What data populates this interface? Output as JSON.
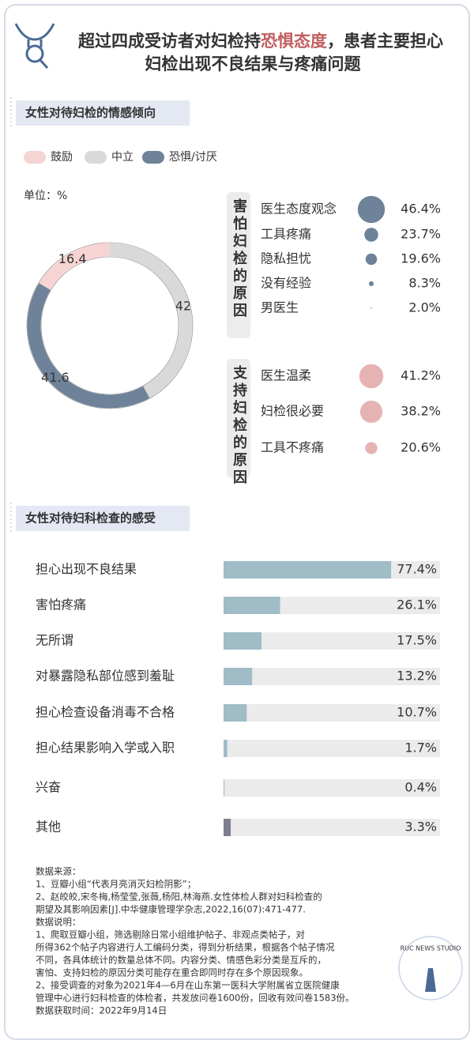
{
  "header": {
    "title": [
      "超过四成受访者对妇检持",
      "恐惧态度",
      "，患者主要担心",
      "妇检出现不良结果与疼痛问题"
    ]
  },
  "chart_data": [
    {
      "type": "pie",
      "title": "女性对待妇检的情感倾向",
      "unit": "单位：%",
      "categories": [
        "鼓励",
        "中立",
        "恐惧/讨厌"
      ],
      "values": [
        16.4,
        42,
        41.6
      ],
      "colors": [
        "#f7d4d4",
        "#d9d9d9",
        "#6e8299"
      ]
    },
    {
      "type": "bubble",
      "title": "害怕妇检的原因",
      "categories": [
        "医生态度观念",
        "工具疼痛",
        "隐私担忧",
        "没有经验",
        "男医生"
      ],
      "values": [
        46.4,
        23.7,
        19.6,
        8.3,
        2.0
      ],
      "value_labels": [
        "46.4%",
        "23.7%",
        "19.6%",
        "8.3%",
        "2.0%"
      ],
      "color": "#6e8299"
    },
    {
      "type": "bubble",
      "title": "支持妇检的原因",
      "categories": [
        "医生温柔",
        "妇检很必要",
        "工具不疼痛"
      ],
      "values": [
        41.2,
        38.2,
        20.6
      ],
      "value_labels": [
        "41.2%",
        "38.2%",
        "20.6%"
      ],
      "color": "#e6b3b3"
    },
    {
      "type": "bar",
      "orientation": "horizontal",
      "title": "女性对待妇科检查的感受",
      "categories": [
        "担心出现不良结果",
        "害怕疼痛",
        "无所谓",
        "对暴露隐私部位感到羞耻",
        "担心检查设备消毒不合格",
        "担心结果影响入学或入职",
        "兴奋",
        "其他"
      ],
      "values": [
        77.4,
        26.1,
        17.5,
        13.2,
        10.7,
        1.7,
        0.4,
        3.3
      ],
      "value_labels": [
        "77.4%",
        "26.1%",
        "17.5%",
        "13.2%",
        "10.7%",
        "1.7%",
        "0.4%",
        "3.3%"
      ],
      "colors": [
        "#9fbcc7",
        "#9fbcc7",
        "#9fbcc7",
        "#9fbcc7",
        "#9fbcc7",
        "#9fbcc7",
        "#9fbcc7",
        "#7d7f8c"
      ],
      "track_color": "#ebebeb",
      "xlim": [
        0,
        100
      ]
    }
  ],
  "footer": {
    "lines": [
      "数据来源：",
      "1、豆瓣小组“代表月亮消灭妇检阴影”；",
      "2、赵皎皎,宋冬梅,杨莹莹,张薇,杨阳,林海燕.女性体检人群对妇科检查的",
      "期望及其影响因素[J].中华健康管理学杂志,2022,16(07):471-477.",
      "数据说明：",
      "1、爬取豆瓣小组，筛选剔除日常小组维护帖子、非观点类帖子，对",
      "所得362个帖子内容进行人工编码分类，得到分析结果，根据各个帖子情况",
      "不同，各具体统计的数量总体不同。内容分类、情感色彩分类是互斥的，",
      "害怕、支持妇检的原因分类可能存在重合即同时存在多个原因现象。",
      "2、接受调查的对象为2021年4—6月在山东第一医科大学附属省立医院健康",
      "管理中心进行妇科检查的体检者，共发放问卷1600份，回收有效问卷1583份。",
      "数据获取时间：2022年9月14日"
    ],
    "logo": "RUC NEWS STUDIO"
  }
}
